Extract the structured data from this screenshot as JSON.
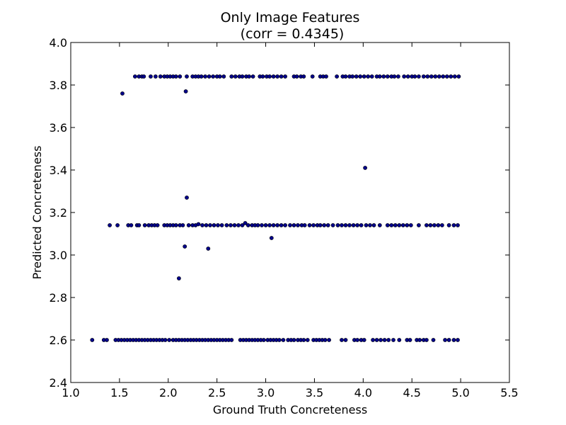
{
  "chart_data": {
    "type": "scatter",
    "title": "Only Image Features",
    "subtitle": "(corr = 0.4345)",
    "xlabel": "Ground Truth Concreteness",
    "ylabel": "Predicted Concreteness",
    "xlim": [
      1.0,
      5.5
    ],
    "ylim": [
      2.4,
      4.0
    ],
    "xticks": [
      "1.0",
      "1.5",
      "2.0",
      "2.5",
      "3.0",
      "3.5",
      "4.0",
      "4.5",
      "5.0",
      "5.5"
    ],
    "yticks": [
      "2.4",
      "2.6",
      "2.8",
      "3.0",
      "3.2",
      "3.4",
      "3.6",
      "3.8",
      "4.0"
    ],
    "grid": false,
    "marker_color": "#00008b",
    "points": [
      [
        1.53,
        3.76
      ],
      [
        2.18,
        3.77
      ],
      [
        4.02,
        3.41
      ],
      [
        2.19,
        3.27
      ],
      [
        2.17,
        3.04
      ],
      [
        2.41,
        3.03
      ],
      [
        3.06,
        3.08
      ],
      [
        2.11,
        2.89
      ],
      [
        2.79,
        3.15
      ],
      [
        1.66,
        3.84
      ],
      [
        1.7,
        3.84
      ],
      [
        1.73,
        3.84
      ],
      [
        1.75,
        3.84
      ],
      [
        1.82,
        3.84
      ],
      [
        1.87,
        3.84
      ],
      [
        1.92,
        3.84
      ],
      [
        1.96,
        3.84
      ],
      [
        1.99,
        3.84
      ],
      [
        2.02,
        3.84
      ],
      [
        2.05,
        3.84
      ],
      [
        2.08,
        3.84
      ],
      [
        2.12,
        3.84
      ],
      [
        2.19,
        3.84
      ],
      [
        2.25,
        3.84
      ],
      [
        2.28,
        3.84
      ],
      [
        2.31,
        3.84
      ],
      [
        2.34,
        3.84
      ],
      [
        2.38,
        3.84
      ],
      [
        2.42,
        3.84
      ],
      [
        2.46,
        3.84
      ],
      [
        2.5,
        3.84
      ],
      [
        2.53,
        3.84
      ],
      [
        2.57,
        3.84
      ],
      [
        2.65,
        3.84
      ],
      [
        2.69,
        3.84
      ],
      [
        2.73,
        3.84
      ],
      [
        2.76,
        3.84
      ],
      [
        2.8,
        3.84
      ],
      [
        2.83,
        3.84
      ],
      [
        2.87,
        3.84
      ],
      [
        2.94,
        3.84
      ],
      [
        2.97,
        3.84
      ],
      [
        3.01,
        3.84
      ],
      [
        3.04,
        3.84
      ],
      [
        3.08,
        3.84
      ],
      [
        3.12,
        3.84
      ],
      [
        3.16,
        3.84
      ],
      [
        3.2,
        3.84
      ],
      [
        3.29,
        3.84
      ],
      [
        3.32,
        3.84
      ],
      [
        3.36,
        3.84
      ],
      [
        3.39,
        3.84
      ],
      [
        3.48,
        3.84
      ],
      [
        3.56,
        3.84
      ],
      [
        3.59,
        3.84
      ],
      [
        3.62,
        3.84
      ],
      [
        3.73,
        3.84
      ],
      [
        3.79,
        3.84
      ],
      [
        3.82,
        3.84
      ],
      [
        3.86,
        3.84
      ],
      [
        3.89,
        3.84
      ],
      [
        3.93,
        3.84
      ],
      [
        3.97,
        3.84
      ],
      [
        4.01,
        3.84
      ],
      [
        4.05,
        3.84
      ],
      [
        4.09,
        3.84
      ],
      [
        4.14,
        3.84
      ],
      [
        4.17,
        3.84
      ],
      [
        4.21,
        3.84
      ],
      [
        4.25,
        3.84
      ],
      [
        4.29,
        3.84
      ],
      [
        4.32,
        3.84
      ],
      [
        4.36,
        3.84
      ],
      [
        4.42,
        3.84
      ],
      [
        4.46,
        3.84
      ],
      [
        4.5,
        3.84
      ],
      [
        4.53,
        3.84
      ],
      [
        4.57,
        3.84
      ],
      [
        4.62,
        3.84
      ],
      [
        4.66,
        3.84
      ],
      [
        4.7,
        3.84
      ],
      [
        4.74,
        3.84
      ],
      [
        4.78,
        3.84
      ],
      [
        4.82,
        3.84
      ],
      [
        4.86,
        3.84
      ],
      [
        4.9,
        3.84
      ],
      [
        4.94,
        3.84
      ],
      [
        4.98,
        3.84
      ],
      [
        1.4,
        3.14
      ],
      [
        1.48,
        3.14
      ],
      [
        1.59,
        3.14
      ],
      [
        1.62,
        3.14
      ],
      [
        1.68,
        3.14
      ],
      [
        1.7,
        3.14
      ],
      [
        1.76,
        3.14
      ],
      [
        1.8,
        3.14
      ],
      [
        1.83,
        3.14
      ],
      [
        1.86,
        3.14
      ],
      [
        1.89,
        3.14
      ],
      [
        1.96,
        3.14
      ],
      [
        1.99,
        3.14
      ],
      [
        2.02,
        3.14
      ],
      [
        2.05,
        3.14
      ],
      [
        2.08,
        3.14
      ],
      [
        2.12,
        3.14
      ],
      [
        2.15,
        3.14
      ],
      [
        2.21,
        3.14
      ],
      [
        2.25,
        3.14
      ],
      [
        2.28,
        3.14
      ],
      [
        2.31,
        3.145
      ],
      [
        2.35,
        3.14
      ],
      [
        2.39,
        3.14
      ],
      [
        2.43,
        3.14
      ],
      [
        2.47,
        3.14
      ],
      [
        2.51,
        3.14
      ],
      [
        2.55,
        3.14
      ],
      [
        2.6,
        3.14
      ],
      [
        2.64,
        3.14
      ],
      [
        2.68,
        3.14
      ],
      [
        2.72,
        3.14
      ],
      [
        2.76,
        3.14
      ],
      [
        2.82,
        3.14
      ],
      [
        2.86,
        3.14
      ],
      [
        2.89,
        3.14
      ],
      [
        2.92,
        3.14
      ],
      [
        2.96,
        3.14
      ],
      [
        3.0,
        3.14
      ],
      [
        3.04,
        3.14
      ],
      [
        3.08,
        3.14
      ],
      [
        3.12,
        3.14
      ],
      [
        3.16,
        3.14
      ],
      [
        3.2,
        3.14
      ],
      [
        3.25,
        3.14
      ],
      [
        3.29,
        3.14
      ],
      [
        3.33,
        3.14
      ],
      [
        3.37,
        3.14
      ],
      [
        3.4,
        3.14
      ],
      [
        3.45,
        3.14
      ],
      [
        3.49,
        3.14
      ],
      [
        3.53,
        3.14
      ],
      [
        3.56,
        3.14
      ],
      [
        3.6,
        3.14
      ],
      [
        3.64,
        3.14
      ],
      [
        3.69,
        3.14
      ],
      [
        3.74,
        3.14
      ],
      [
        3.78,
        3.14
      ],
      [
        3.82,
        3.14
      ],
      [
        3.86,
        3.14
      ],
      [
        3.9,
        3.14
      ],
      [
        3.94,
        3.14
      ],
      [
        3.98,
        3.14
      ],
      [
        4.03,
        3.14
      ],
      [
        4.07,
        3.14
      ],
      [
        4.11,
        3.14
      ],
      [
        4.17,
        3.14
      ],
      [
        4.25,
        3.14
      ],
      [
        4.29,
        3.14
      ],
      [
        4.33,
        3.14
      ],
      [
        4.37,
        3.14
      ],
      [
        4.41,
        3.14
      ],
      [
        4.45,
        3.14
      ],
      [
        4.49,
        3.14
      ],
      [
        4.57,
        3.14
      ],
      [
        4.65,
        3.14
      ],
      [
        4.69,
        3.14
      ],
      [
        4.73,
        3.14
      ],
      [
        4.77,
        3.14
      ],
      [
        4.81,
        3.14
      ],
      [
        4.88,
        3.14
      ],
      [
        4.93,
        3.14
      ],
      [
        4.97,
        3.14
      ],
      [
        1.22,
        2.6
      ],
      [
        1.34,
        2.6
      ],
      [
        1.37,
        2.6
      ],
      [
        1.46,
        2.6
      ],
      [
        1.49,
        2.6
      ],
      [
        1.52,
        2.6
      ],
      [
        1.55,
        2.6
      ],
      [
        1.58,
        2.6
      ],
      [
        1.61,
        2.6
      ],
      [
        1.64,
        2.6
      ],
      [
        1.67,
        2.6
      ],
      [
        1.7,
        2.6
      ],
      [
        1.73,
        2.6
      ],
      [
        1.76,
        2.6
      ],
      [
        1.79,
        2.6
      ],
      [
        1.82,
        2.6
      ],
      [
        1.85,
        2.6
      ],
      [
        1.88,
        2.6
      ],
      [
        1.91,
        2.6
      ],
      [
        1.94,
        2.6
      ],
      [
        1.97,
        2.6
      ],
      [
        2.01,
        2.6
      ],
      [
        2.05,
        2.6
      ],
      [
        2.08,
        2.6
      ],
      [
        2.11,
        2.6
      ],
      [
        2.14,
        2.6
      ],
      [
        2.17,
        2.6
      ],
      [
        2.2,
        2.6
      ],
      [
        2.23,
        2.6
      ],
      [
        2.26,
        2.6
      ],
      [
        2.29,
        2.6
      ],
      [
        2.32,
        2.6
      ],
      [
        2.35,
        2.6
      ],
      [
        2.38,
        2.6
      ],
      [
        2.41,
        2.6
      ],
      [
        2.44,
        2.6
      ],
      [
        2.47,
        2.6
      ],
      [
        2.5,
        2.6
      ],
      [
        2.53,
        2.6
      ],
      [
        2.56,
        2.6
      ],
      [
        2.59,
        2.6
      ],
      [
        2.62,
        2.6
      ],
      [
        2.65,
        2.6
      ],
      [
        2.74,
        2.6
      ],
      [
        2.77,
        2.6
      ],
      [
        2.8,
        2.6
      ],
      [
        2.83,
        2.6
      ],
      [
        2.86,
        2.6
      ],
      [
        2.89,
        2.6
      ],
      [
        2.92,
        2.6
      ],
      [
        2.95,
        2.6
      ],
      [
        2.98,
        2.6
      ],
      [
        3.02,
        2.6
      ],
      [
        3.05,
        2.6
      ],
      [
        3.08,
        2.6
      ],
      [
        3.11,
        2.6
      ],
      [
        3.14,
        2.6
      ],
      [
        3.18,
        2.6
      ],
      [
        3.23,
        2.6
      ],
      [
        3.26,
        2.6
      ],
      [
        3.29,
        2.6
      ],
      [
        3.33,
        2.6
      ],
      [
        3.36,
        2.6
      ],
      [
        3.39,
        2.6
      ],
      [
        3.43,
        2.6
      ],
      [
        3.49,
        2.6
      ],
      [
        3.52,
        2.6
      ],
      [
        3.55,
        2.6
      ],
      [
        3.58,
        2.6
      ],
      [
        3.61,
        2.6
      ],
      [
        3.65,
        2.6
      ],
      [
        3.78,
        2.6
      ],
      [
        3.82,
        2.6
      ],
      [
        3.91,
        2.6
      ],
      [
        3.94,
        2.6
      ],
      [
        3.98,
        2.6
      ],
      [
        4.01,
        2.6
      ],
      [
        4.1,
        2.6
      ],
      [
        4.14,
        2.6
      ],
      [
        4.18,
        2.6
      ],
      [
        4.22,
        2.6
      ],
      [
        4.26,
        2.6
      ],
      [
        4.31,
        2.6
      ],
      [
        4.37,
        2.6
      ],
      [
        4.45,
        2.6
      ],
      [
        4.48,
        2.6
      ],
      [
        4.55,
        2.6
      ],
      [
        4.58,
        2.6
      ],
      [
        4.62,
        2.6
      ],
      [
        4.65,
        2.6
      ],
      [
        4.72,
        2.6
      ],
      [
        4.84,
        2.6
      ],
      [
        4.88,
        2.6
      ],
      [
        4.93,
        2.6
      ],
      [
        4.97,
        2.6
      ]
    ]
  }
}
